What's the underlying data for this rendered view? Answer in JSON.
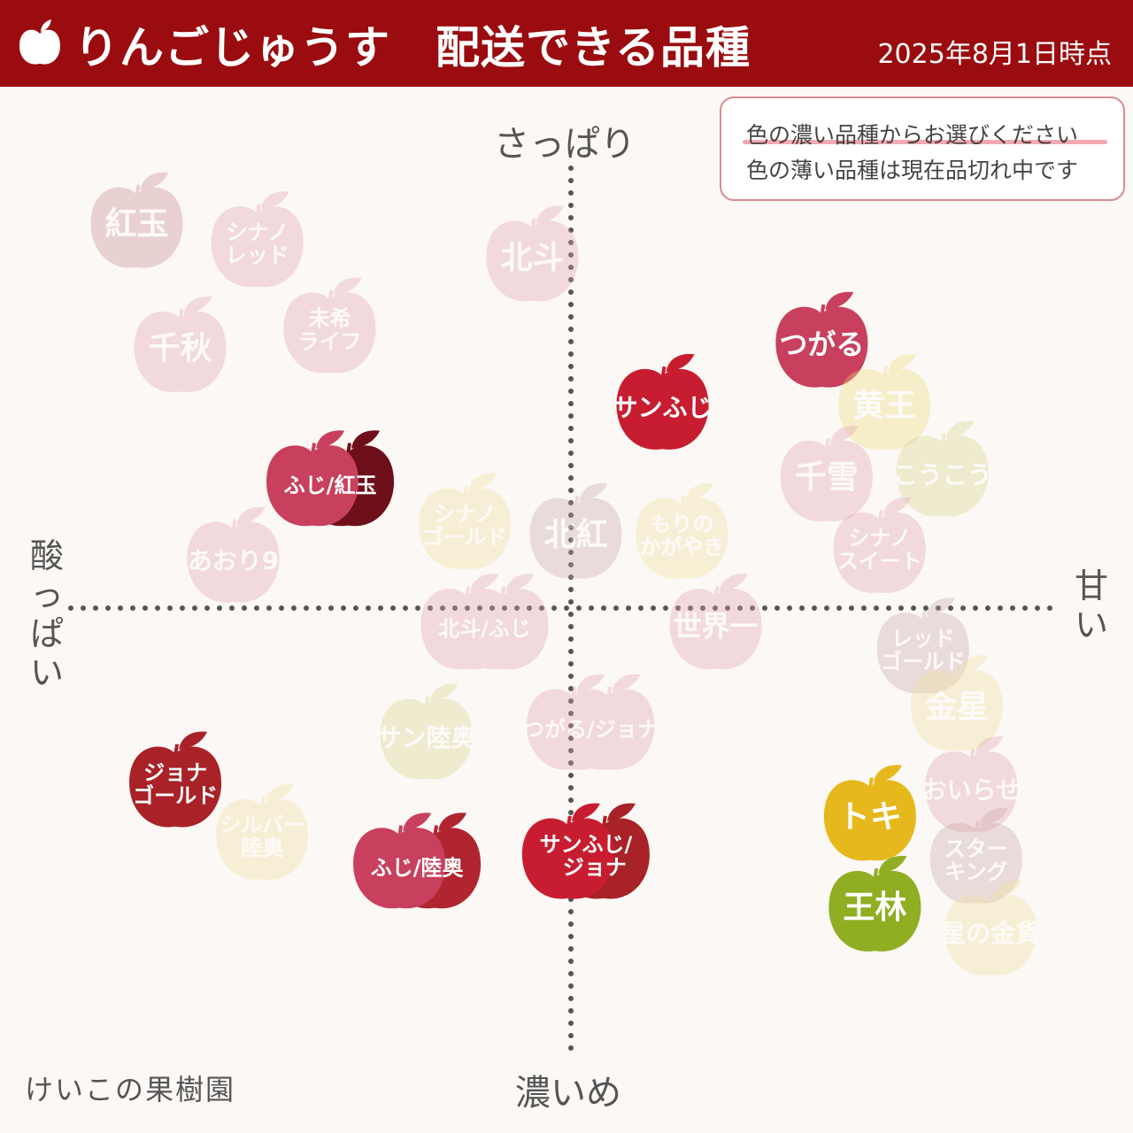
{
  "header": {
    "title": "りんごじゅうす　配送できる品種",
    "date": "2025年8月1日時点",
    "logo_icon": "apple-icon"
  },
  "legend": {
    "line1": "色の濃い品種からお選びください",
    "line2": "色の薄い品種は現在品切れ中です"
  },
  "axes": {
    "top": "さっぱり",
    "bottom": "濃いめ",
    "left": "酸っぱい",
    "right": "甘い"
  },
  "credit": "けいこの果樹園",
  "colors": {
    "header": "#9a0c0f",
    "background": "#fcf8f5",
    "axis_dots": "#555555"
  },
  "chart_data": {
    "type": "scatter",
    "x_axis": {
      "negative": "酸っぱい",
      "positive": "甘い",
      "range": [
        -1,
        1
      ]
    },
    "y_axis": {
      "negative": "濃いめ",
      "positive": "さっぱり",
      "range": [
        -1,
        1
      ]
    },
    "available_note": "色の濃い品種からお選びください",
    "unavailable_note": "色の薄い品種は現在品切れ中です",
    "points": [
      {
        "label": "紅玉",
        "x": -0.9,
        "y": 0.8,
        "available": false,
        "color": "#c68a8f"
      },
      {
        "label": "シナノレッド",
        "x": -0.65,
        "y": 0.76,
        "available": false,
        "color": "#e0a1ac"
      },
      {
        "label": "北斗",
        "x": -0.08,
        "y": 0.73,
        "available": false,
        "color": "#e0a1ac"
      },
      {
        "label": "千秋",
        "x": -0.81,
        "y": 0.54,
        "available": false,
        "color": "#e0a1ac"
      },
      {
        "label": "未希ライフ",
        "x": -0.5,
        "y": 0.58,
        "available": false,
        "color": "#e0a1ac"
      },
      {
        "label": "つがる",
        "x": 0.52,
        "y": 0.55,
        "available": true,
        "color": "#c8405e"
      },
      {
        "label": "サンふじ",
        "x": 0.19,
        "y": 0.42,
        "available": true,
        "color": "#c81d30"
      },
      {
        "label": "黄王",
        "x": 0.65,
        "y": 0.42,
        "available": false,
        "color": "#ecdc78"
      },
      {
        "label": "ふじ/紅玉",
        "x": -0.51,
        "y": 0.26,
        "available": true,
        "color": "#c8405e",
        "color2": "#6e0f1a"
      },
      {
        "label": "千雪",
        "x": 0.53,
        "y": 0.27,
        "available": false,
        "color": "#e0a1ac"
      },
      {
        "label": "こうこう",
        "x": 0.77,
        "y": 0.28,
        "available": false,
        "color": "#d6d48a"
      },
      {
        "label": "シナノゴールド",
        "x": -0.22,
        "y": 0.17,
        "available": false,
        "color": "#f0e19a"
      },
      {
        "label": "北紅",
        "x": 0.01,
        "y": 0.15,
        "available": false,
        "color": "#c6a6aa"
      },
      {
        "label": "もりのかがやき",
        "x": 0.23,
        "y": 0.15,
        "available": false,
        "color": "#f0e19a"
      },
      {
        "label": "シナノスイート",
        "x": 0.64,
        "y": 0.12,
        "available": false,
        "color": "#e0a1ac"
      },
      {
        "label": "あおり9",
        "x": -0.7,
        "y": 0.1,
        "available": false,
        "color": "#e0a1ac"
      },
      {
        "label": "北斗/ふじ",
        "x": -0.19,
        "y": -0.04,
        "available": false,
        "color": "#e0a1ac",
        "color2": "#e0a1ac"
      },
      {
        "label": "世界一",
        "x": 0.3,
        "y": -0.04,
        "available": false,
        "color": "#e0a1ac"
      },
      {
        "label": "レッドゴールド",
        "x": 0.73,
        "y": -0.09,
        "available": false,
        "color": "#c6a6aa"
      },
      {
        "label": "金星",
        "x": 0.8,
        "y": -0.21,
        "available": false,
        "color": "#f0e19a"
      },
      {
        "label": "サン陸奥",
        "x": -0.3,
        "y": -0.27,
        "available": false,
        "color": "#d6d48a"
      },
      {
        "label": "つがる/ジョナ",
        "x": 0.03,
        "y": -0.25,
        "available": false,
        "color": "#e0a1ac",
        "color2": "#e0a1ac"
      },
      {
        "label": "ジョナゴールド",
        "x": -0.82,
        "y": -0.37,
        "available": true,
        "color": "#a82227"
      },
      {
        "label": "おいらせ",
        "x": 0.83,
        "y": -0.38,
        "available": false,
        "color": "#e0a1ac"
      },
      {
        "label": "トキ",
        "x": 0.62,
        "y": -0.44,
        "available": true,
        "color": "#e6b81c"
      },
      {
        "label": "シルバー陸奥",
        "x": -0.64,
        "y": -0.48,
        "available": false,
        "color": "#f0e19a"
      },
      {
        "label": "ふじ/陸奥",
        "x": -0.33,
        "y": -0.54,
        "available": true,
        "color": "#c8405e",
        "color2": "#b02530"
      },
      {
        "label": "サンふじ/ジョナ",
        "x": 0.02,
        "y": -0.52,
        "available": true,
        "color": "#c81d30",
        "color2": "#a82227"
      },
      {
        "label": "スターキング",
        "x": 0.84,
        "y": -0.53,
        "available": false,
        "color": "#c6a6aa"
      },
      {
        "label": "王林",
        "x": 0.63,
        "y": -0.63,
        "available": true,
        "color": "#8fae22"
      },
      {
        "label": "星の金貨",
        "x": 0.87,
        "y": -0.68,
        "available": false,
        "color": "#f0e19a"
      }
    ]
  }
}
